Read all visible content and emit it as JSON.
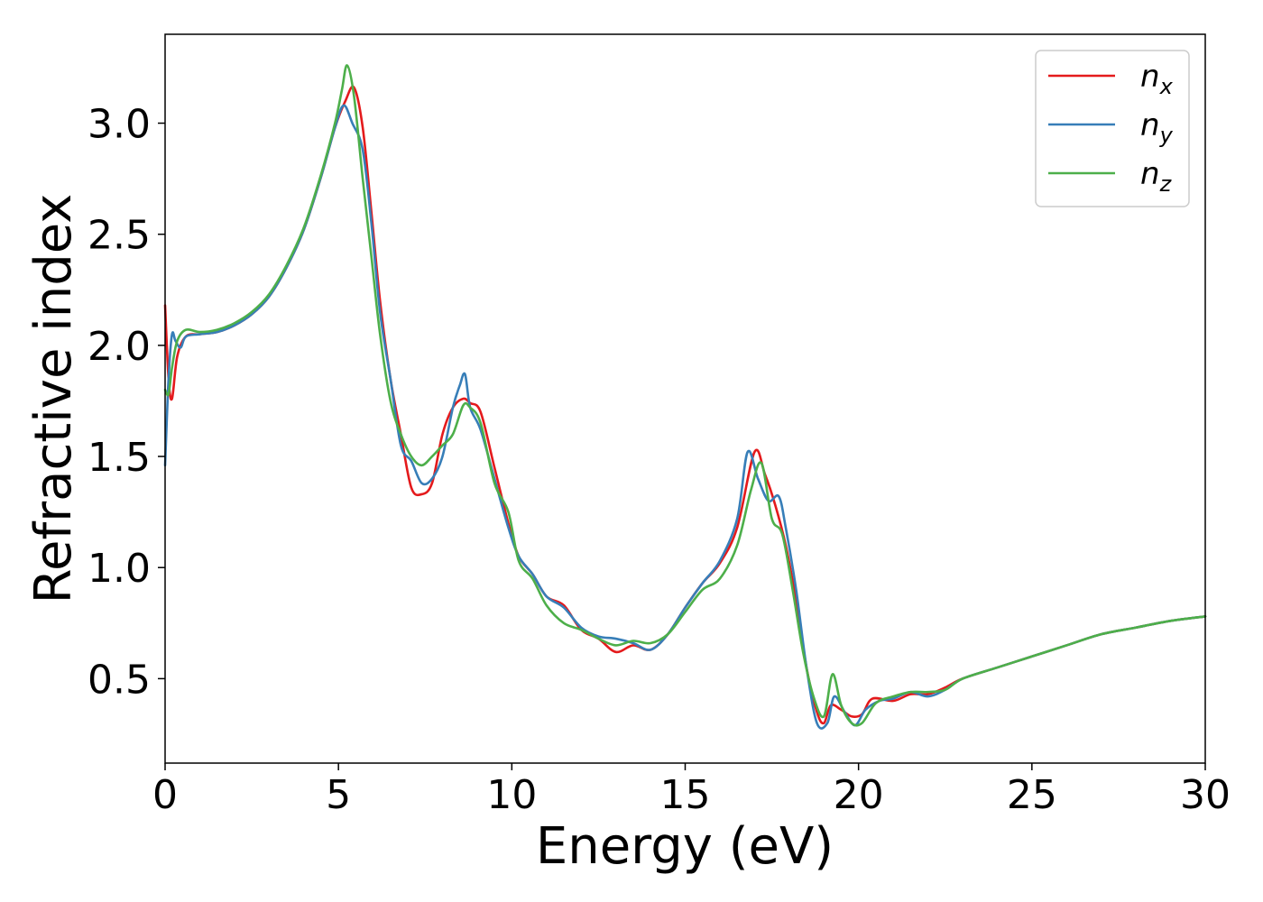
{
  "chart_data": {
    "type": "line",
    "xlabel": "Energy (eV)",
    "ylabel": "Refractive index",
    "xlim": [
      0,
      30
    ],
    "ylim": [
      0.12,
      3.4
    ],
    "xticks": [
      0,
      5,
      10,
      15,
      20,
      25,
      30
    ],
    "yticks": [
      0.5,
      1.0,
      1.5,
      2.0,
      2.5,
      3.0
    ],
    "xtick_labels": [
      "0",
      "5",
      "10",
      "15",
      "20",
      "25",
      "30"
    ],
    "ytick_labels": [
      "0.5",
      "1.0",
      "1.5",
      "2.0",
      "2.5",
      "3.0"
    ],
    "grid": false,
    "legend_position": "top-right",
    "series": [
      {
        "name": "n_x",
        "label_base": "n",
        "label_sub": "x",
        "color": "#e41a1c",
        "x": [
          0,
          0.1,
          0.2,
          0.35,
          0.6,
          1,
          1.5,
          2,
          2.5,
          3,
          3.5,
          4,
          4.5,
          4.9,
          5.2,
          5.45,
          5.7,
          5.95,
          6.2,
          6.5,
          6.8,
          7.1,
          7.4,
          7.7,
          8,
          8.3,
          8.6,
          8.8,
          9.1,
          9.5,
          9.9,
          10.2,
          10.6,
          11,
          11.5,
          12,
          12.5,
          13,
          13.5,
          14,
          14.5,
          15,
          15.5,
          16,
          16.5,
          17,
          17.3,
          17.6,
          17.9,
          18.2,
          18.5,
          18.8,
          19,
          19.2,
          19.5,
          19.8,
          20.1,
          20.4,
          21,
          21.5,
          22,
          22.5,
          23,
          24,
          25,
          26,
          27,
          28,
          29,
          30
        ],
        "y": [
          2.18,
          1.85,
          1.76,
          1.95,
          2.04,
          2.05,
          2.06,
          2.09,
          2.14,
          2.22,
          2.35,
          2.52,
          2.76,
          2.98,
          3.1,
          3.16,
          2.98,
          2.6,
          2.2,
          1.85,
          1.6,
          1.36,
          1.33,
          1.38,
          1.6,
          1.72,
          1.76,
          1.74,
          1.7,
          1.45,
          1.2,
          1.05,
          0.97,
          0.87,
          0.83,
          0.72,
          0.68,
          0.62,
          0.65,
          0.63,
          0.7,
          0.82,
          0.93,
          1.02,
          1.18,
          1.52,
          1.42,
          1.28,
          1.1,
          0.85,
          0.55,
          0.35,
          0.3,
          0.38,
          0.36,
          0.33,
          0.34,
          0.41,
          0.4,
          0.43,
          0.43,
          0.46,
          0.5,
          0.55,
          0.6,
          0.65,
          0.7,
          0.73,
          0.76,
          0.78
        ]
      },
      {
        "name": "n_y",
        "label_base": "n",
        "label_sub": "y",
        "color": "#377eb8",
        "x": [
          0,
          0.1,
          0.2,
          0.3,
          0.45,
          0.6,
          1,
          1.5,
          2,
          2.5,
          3,
          3.5,
          4,
          4.5,
          4.9,
          5.15,
          5.4,
          5.7,
          5.95,
          6.2,
          6.5,
          6.8,
          7.1,
          7.4,
          7.7,
          8,
          8.3,
          8.5,
          8.65,
          8.8,
          9.1,
          9.5,
          9.9,
          10.2,
          10.6,
          11,
          11.5,
          12,
          12.5,
          13,
          13.5,
          14,
          14.5,
          15,
          15.5,
          16,
          16.5,
          16.8,
          17.1,
          17.4,
          17.7,
          17.9,
          18.2,
          18.5,
          18.8,
          19.1,
          19.3,
          19.6,
          19.9,
          20.2,
          20.6,
          21,
          21.5,
          22,
          22.5,
          23,
          24,
          25,
          26,
          27,
          28,
          29,
          30
        ],
        "y": [
          1.46,
          1.85,
          2.05,
          2.02,
          1.99,
          2.04,
          2.05,
          2.06,
          2.09,
          2.14,
          2.22,
          2.35,
          2.52,
          2.76,
          2.98,
          3.08,
          3.0,
          2.88,
          2.55,
          2.15,
          1.85,
          1.55,
          1.48,
          1.38,
          1.4,
          1.5,
          1.72,
          1.82,
          1.87,
          1.72,
          1.62,
          1.4,
          1.18,
          1.05,
          0.97,
          0.87,
          0.82,
          0.73,
          0.69,
          0.68,
          0.66,
          0.63,
          0.7,
          0.82,
          0.93,
          1.03,
          1.22,
          1.52,
          1.4,
          1.3,
          1.32,
          1.18,
          0.9,
          0.55,
          0.3,
          0.3,
          0.42,
          0.35,
          0.29,
          0.36,
          0.4,
          0.41,
          0.44,
          0.42,
          0.45,
          0.5,
          0.55,
          0.6,
          0.65,
          0.7,
          0.73,
          0.76,
          0.78
        ]
      },
      {
        "name": "n_z",
        "label_base": "n",
        "label_sub": "z",
        "color": "#4daf4a",
        "x": [
          0,
          0.1,
          0.2,
          0.35,
          0.6,
          1,
          1.5,
          2,
          2.5,
          3,
          3.5,
          4,
          4.5,
          4.9,
          5.1,
          5.25,
          5.45,
          5.7,
          5.95,
          6.2,
          6.5,
          6.8,
          7.1,
          7.4,
          7.7,
          8,
          8.3,
          8.6,
          8.8,
          9.1,
          9.5,
          9.9,
          10.2,
          10.6,
          11,
          11.5,
          12,
          12.5,
          13,
          13.5,
          14,
          14.5,
          15,
          15.5,
          16,
          16.5,
          16.9,
          17.2,
          17.5,
          17.8,
          18.1,
          18.4,
          18.7,
          19,
          19.25,
          19.5,
          19.8,
          20.1,
          20.5,
          21,
          21.5,
          22,
          22.5,
          23,
          24,
          25,
          26,
          27,
          28,
          29,
          30
        ],
        "y": [
          1.8,
          1.78,
          1.9,
          2.02,
          2.07,
          2.06,
          2.07,
          2.1,
          2.15,
          2.23,
          2.36,
          2.53,
          2.77,
          3.0,
          3.15,
          3.26,
          3.12,
          2.75,
          2.4,
          2.05,
          1.75,
          1.6,
          1.5,
          1.46,
          1.5,
          1.55,
          1.6,
          1.73,
          1.72,
          1.65,
          1.38,
          1.25,
          1.03,
          0.95,
          0.83,
          0.75,
          0.72,
          0.68,
          0.65,
          0.67,
          0.66,
          0.7,
          0.8,
          0.9,
          0.95,
          1.1,
          1.35,
          1.47,
          1.22,
          1.15,
          0.9,
          0.62,
          0.42,
          0.33,
          0.52,
          0.38,
          0.3,
          0.3,
          0.39,
          0.42,
          0.44,
          0.44,
          0.45,
          0.5,
          0.55,
          0.6,
          0.65,
          0.7,
          0.73,
          0.76,
          0.78
        ]
      }
    ]
  }
}
